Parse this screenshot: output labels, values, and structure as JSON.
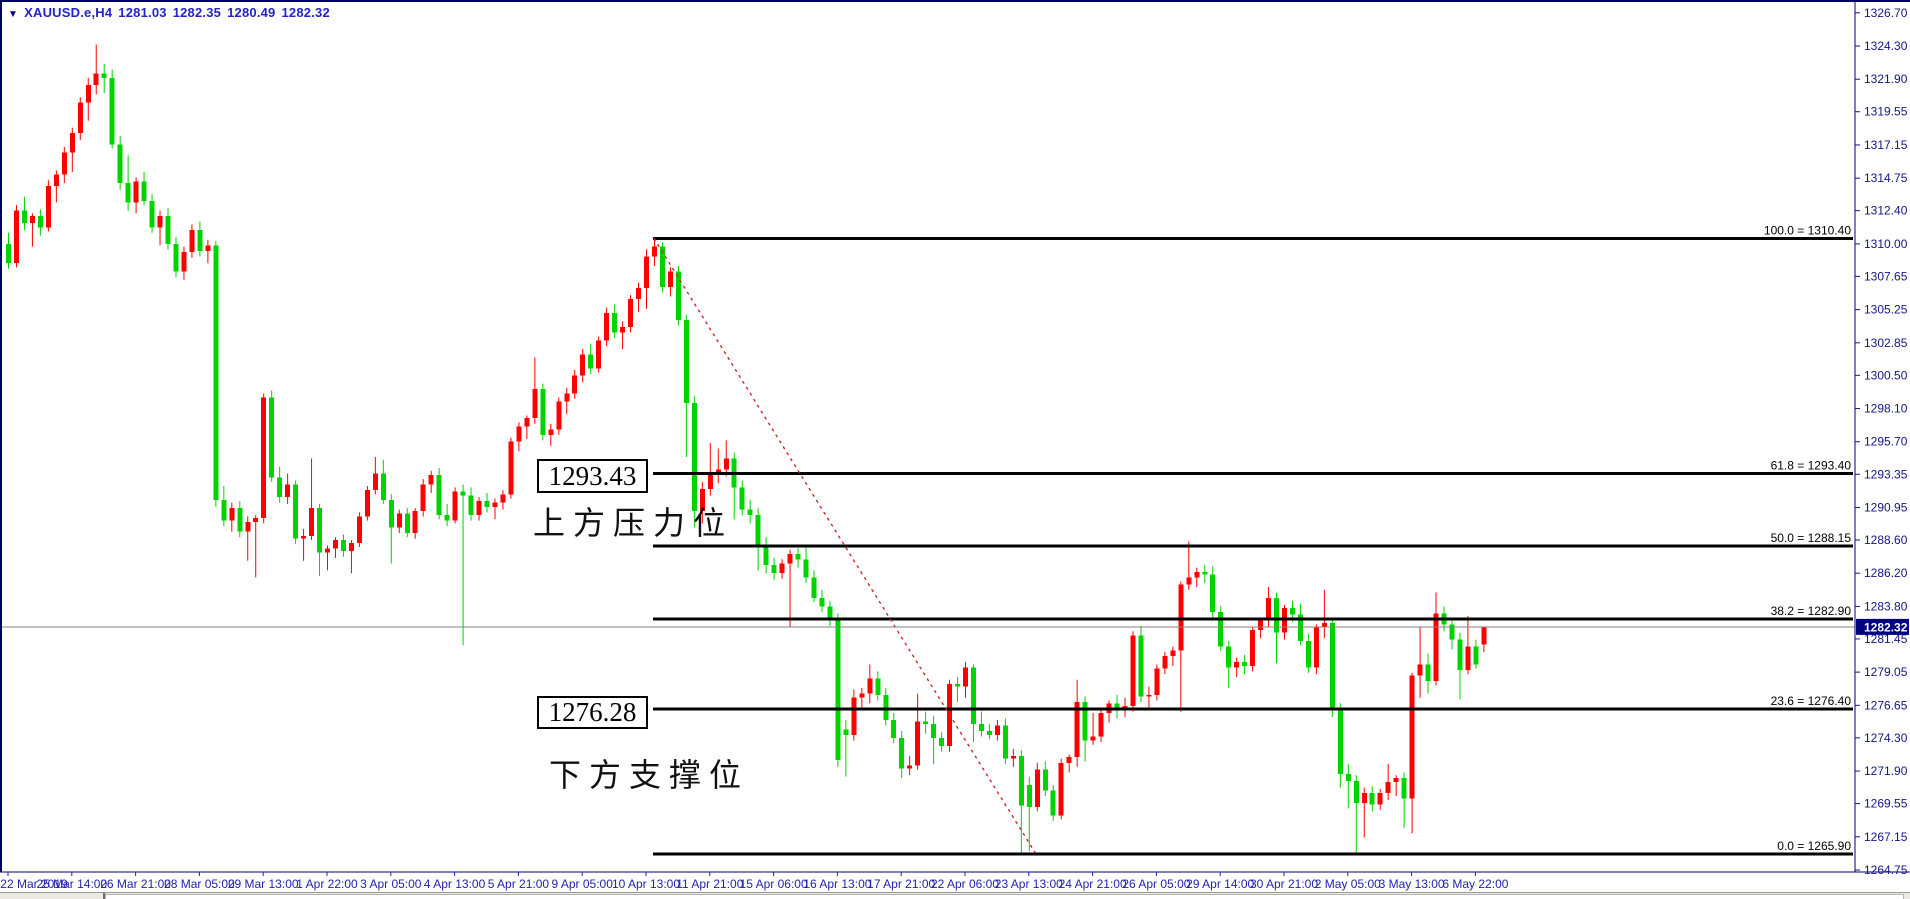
{
  "window": {
    "ohlc_bar": {
      "collapse_icon": "▼",
      "symbol_period": "XAUUSD.e,H4",
      "open": "1281.03",
      "high": "1282.35",
      "low": "1280.49",
      "close": "1282.32"
    }
  },
  "chart_data": {
    "type": "candlestick",
    "symbol": "XAUUSD.e",
    "timeframe": "H4",
    "legend_position": "top-left",
    "grid": false,
    "colors": {
      "bull": "#ff0000",
      "bear": "#00d300",
      "fib_line": "#000000",
      "fib_text": "#000000",
      "trendline": "#cc2a2a",
      "current_price_line": "#808080",
      "current_price_bg": "#000080",
      "current_price_text": "#ffffff",
      "price_text": "#151585",
      "date_text": "#2323aa",
      "border": "#000066"
    },
    "price_axis": {
      "current_price": "1282.32",
      "ticks": [
        "1326.70",
        "1324.30",
        "1321.90",
        "1319.55",
        "1317.15",
        "1314.75",
        "1312.40",
        "1310.00",
        "1307.65",
        "1305.25",
        "1302.85",
        "1300.50",
        "1298.10",
        "1295.70",
        "1293.35",
        "1290.95",
        "1288.60",
        "1286.20",
        "1283.80",
        "1281.45",
        "1279.05",
        "1276.65",
        "1274.30",
        "1271.90",
        "1269.55",
        "1267.15",
        "1264.75"
      ],
      "tick_values": [
        1326.7,
        1324.3,
        1321.9,
        1319.55,
        1317.15,
        1314.75,
        1312.4,
        1310.0,
        1307.65,
        1305.25,
        1302.85,
        1300.5,
        1298.1,
        1295.7,
        1293.35,
        1290.95,
        1288.6,
        1286.2,
        1283.8,
        1281.45,
        1279.05,
        1276.65,
        1274.3,
        1271.9,
        1269.55,
        1267.15,
        1264.75
      ]
    },
    "date_axis": {
      "labels": [
        "22 Mar 2019",
        "25 Mar 14:00",
        "26 Mar 21:00",
        "28 Mar 05:00",
        "29 Mar 13:00",
        "1 Apr 22:00",
        "3 Apr 05:00",
        "4 Apr 13:00",
        "5 Apr 21:00",
        "9 Apr 05:00",
        "10 Apr 13:00",
        "11 Apr 21:00",
        "15 Apr 06:00",
        "16 Apr 13:00",
        "17 Apr 21:00",
        "22 Apr 06:00",
        "23 Apr 13:00",
        "24 Apr 21:00",
        "26 Apr 05:00",
        "29 Apr 14:00",
        "30 Apr 21:00",
        "2 May 05:00",
        "3 May 13:00",
        "6 May 22:00"
      ]
    },
    "fibonacci": {
      "levels": [
        {
          "label": "100.0 = 1310.40",
          "ratio": 100.0,
          "price": 1310.4
        },
        {
          "label": "61.8 = 1293.40",
          "ratio": 61.8,
          "price": 1293.4
        },
        {
          "label": "50.0 = 1288.15",
          "ratio": 50.0,
          "price": 1288.15
        },
        {
          "label": "38.2 = 1282.90",
          "ratio": 38.2,
          "price": 1282.9
        },
        {
          "label": "23.6 = 1276.40",
          "ratio": 23.6,
          "price": 1276.4
        },
        {
          "label": "0.0 = 1265.90",
          "ratio": 0.0,
          "price": 1265.9
        }
      ]
    },
    "trendline": {
      "from_bar": 81,
      "from_price": 1310.4,
      "to_bar": 128.8,
      "to_price": 1266.0,
      "style": "dashed"
    },
    "annotations": [
      {
        "name": "resistance-price",
        "text": "1293.43",
        "boxed": true
      },
      {
        "name": "resistance-label",
        "text": "上方压力位",
        "boxed": false
      },
      {
        "name": "support-price",
        "text": "1276.28",
        "boxed": true
      },
      {
        "name": "support-label",
        "text": "下方支撑位",
        "boxed": false
      }
    ],
    "ylim": [
      1264.75,
      1326.7
    ],
    "candles": [
      [
        1310.0,
        1310.8,
        1308.2,
        1308.6
      ],
      [
        1308.6,
        1312.8,
        1308.3,
        1312.4
      ],
      [
        1312.4,
        1313.4,
        1311.0,
        1311.5
      ],
      [
        1311.5,
        1312.2,
        1309.8,
        1312.0
      ],
      [
        1312.0,
        1312.5,
        1310.6,
        1311.2
      ],
      [
        1311.2,
        1314.6,
        1310.9,
        1314.2
      ],
      [
        1314.2,
        1315.3,
        1313.0,
        1315.0
      ],
      [
        1315.0,
        1317.0,
        1314.4,
        1316.6
      ],
      [
        1316.6,
        1318.4,
        1315.2,
        1318.0
      ],
      [
        1318.0,
        1320.6,
        1317.5,
        1320.2
      ],
      [
        1320.2,
        1322.0,
        1318.9,
        1321.5
      ],
      [
        1321.5,
        1324.4,
        1320.8,
        1322.3
      ],
      [
        1322.3,
        1323.0,
        1320.9,
        1322.0
      ],
      [
        1322.0,
        1322.6,
        1316.9,
        1317.2
      ],
      [
        1317.2,
        1317.8,
        1313.9,
        1314.4
      ],
      [
        1314.4,
        1316.4,
        1312.4,
        1313.0
      ],
      [
        1313.0,
        1314.8,
        1312.2,
        1314.5
      ],
      [
        1314.5,
        1315.2,
        1312.8,
        1313.1
      ],
      [
        1313.1,
        1313.6,
        1310.8,
        1311.2
      ],
      [
        1311.2,
        1312.4,
        1309.9,
        1312.0
      ],
      [
        1312.0,
        1312.6,
        1309.6,
        1310.0
      ],
      [
        1310.0,
        1310.5,
        1307.6,
        1308.0
      ],
      [
        1308.0,
        1309.8,
        1307.4,
        1309.4
      ],
      [
        1309.4,
        1311.4,
        1309.0,
        1311.0
      ],
      [
        1311.0,
        1311.6,
        1309.1,
        1309.5
      ],
      [
        1309.5,
        1310.3,
        1308.6,
        1309.9
      ],
      [
        1309.9,
        1310.2,
        1291.0,
        1291.5
      ],
      [
        1291.5,
        1292.5,
        1289.6,
        1290.0
      ],
      [
        1290.0,
        1291.3,
        1289.2,
        1290.9
      ],
      [
        1290.9,
        1291.4,
        1288.8,
        1289.2
      ],
      [
        1289.2,
        1290.3,
        1287.1,
        1289.9
      ],
      [
        1289.9,
        1290.4,
        1285.9,
        1290.2
      ],
      [
        1290.2,
        1299.2,
        1289.8,
        1298.9
      ],
      [
        1298.9,
        1299.4,
        1292.8,
        1293.1
      ],
      [
        1293.1,
        1293.9,
        1291.3,
        1291.7
      ],
      [
        1291.7,
        1293.4,
        1291.2,
        1292.6
      ],
      [
        1292.6,
        1292.9,
        1288.3,
        1288.7
      ],
      [
        1288.7,
        1289.4,
        1287.1,
        1288.9
      ],
      [
        1288.9,
        1294.5,
        1288.6,
        1290.9
      ],
      [
        1290.9,
        1291.2,
        1286.0,
        1287.7
      ],
      [
        1287.7,
        1288.2,
        1286.4,
        1288.0
      ],
      [
        1288.0,
        1288.8,
        1287.3,
        1288.6
      ],
      [
        1288.6,
        1289.0,
        1287.4,
        1287.8
      ],
      [
        1287.8,
        1288.6,
        1286.2,
        1288.4
      ],
      [
        1288.4,
        1290.6,
        1288.1,
        1290.3
      ],
      [
        1290.3,
        1292.5,
        1290.0,
        1292.2
      ],
      [
        1292.2,
        1294.6,
        1291.9,
        1293.4
      ],
      [
        1293.4,
        1294.4,
        1291.2,
        1291.5
      ],
      [
        1291.5,
        1291.9,
        1286.9,
        1289.5
      ],
      [
        1289.5,
        1290.8,
        1289.1,
        1290.5
      ],
      [
        1290.5,
        1290.9,
        1288.8,
        1289.1
      ],
      [
        1289.1,
        1290.9,
        1288.7,
        1290.7
      ],
      [
        1290.7,
        1293.0,
        1290.3,
        1292.6
      ],
      [
        1292.6,
        1293.6,
        1292.0,
        1293.3
      ],
      [
        1293.3,
        1293.8,
        1290.1,
        1290.4
      ],
      [
        1290.4,
        1291.2,
        1289.6,
        1290.0
      ],
      [
        1290.0,
        1292.4,
        1289.8,
        1292.1
      ],
      [
        1292.1,
        1292.6,
        1281.0,
        1291.8
      ],
      [
        1291.8,
        1292.4,
        1290.0,
        1290.4
      ],
      [
        1290.4,
        1291.7,
        1290.0,
        1291.4
      ],
      [
        1291.4,
        1292.0,
        1290.6,
        1291.0
      ],
      [
        1291.0,
        1291.6,
        1290.1,
        1291.3
      ],
      [
        1291.3,
        1292.2,
        1290.8,
        1291.9
      ],
      [
        1291.9,
        1296.0,
        1291.6,
        1295.7
      ],
      [
        1295.7,
        1297.1,
        1295.0,
        1296.8
      ],
      [
        1296.8,
        1297.6,
        1295.9,
        1297.4
      ],
      [
        1297.4,
        1301.8,
        1297.0,
        1299.5
      ],
      [
        1299.5,
        1299.9,
        1295.8,
        1296.2
      ],
      [
        1296.2,
        1297.0,
        1295.4,
        1296.6
      ],
      [
        1296.6,
        1298.9,
        1296.2,
        1298.6
      ],
      [
        1298.6,
        1299.6,
        1297.7,
        1299.2
      ],
      [
        1299.2,
        1300.9,
        1298.8,
        1300.5
      ],
      [
        1300.5,
        1302.4,
        1300.0,
        1302.0
      ],
      [
        1302.0,
        1302.8,
        1300.6,
        1301.0
      ],
      [
        1301.0,
        1303.3,
        1300.7,
        1303.0
      ],
      [
        1303.0,
        1305.4,
        1302.6,
        1305.0
      ],
      [
        1305.0,
        1305.6,
        1303.2,
        1303.6
      ],
      [
        1303.6,
        1304.4,
        1302.4,
        1304.0
      ],
      [
        1304.0,
        1306.3,
        1303.6,
        1306.0
      ],
      [
        1306.0,
        1307.2,
        1305.1,
        1306.8
      ],
      [
        1306.8,
        1309.6,
        1305.3,
        1309.1
      ],
      [
        1309.1,
        1310.4,
        1308.4,
        1309.8
      ],
      [
        1309.8,
        1310.1,
        1306.5,
        1306.9
      ],
      [
        1306.9,
        1308.3,
        1306.2,
        1308.0
      ],
      [
        1308.0,
        1308.4,
        1304.1,
        1304.5
      ],
      [
        1304.5,
        1304.9,
        1294.6,
        1298.5
      ],
      [
        1298.5,
        1299.0,
        1289.5,
        1290.7
      ],
      [
        1290.7,
        1292.8,
        1289.8,
        1292.3
      ],
      [
        1292.3,
        1295.6,
        1291.8,
        1293.3
      ],
      [
        1293.3,
        1295.2,
        1292.7,
        1293.7
      ],
      [
        1293.7,
        1295.8,
        1293.2,
        1294.5
      ],
      [
        1294.5,
        1294.9,
        1290.1,
        1292.4
      ],
      [
        1292.4,
        1292.9,
        1290.4,
        1290.8
      ],
      [
        1290.8,
        1291.5,
        1289.8,
        1290.4
      ],
      [
        1290.4,
        1290.9,
        1286.4,
        1288.1
      ],
      [
        1288.1,
        1288.8,
        1286.2,
        1286.8
      ],
      [
        1286.8,
        1287.3,
        1285.7,
        1286.2
      ],
      [
        1286.2,
        1287.2,
        1285.8,
        1286.9
      ],
      [
        1286.9,
        1287.9,
        1282.3,
        1287.6
      ],
      [
        1287.6,
        1288.0,
        1286.6,
        1287.2
      ],
      [
        1287.2,
        1288.2,
        1285.5,
        1285.9
      ],
      [
        1285.9,
        1286.4,
        1284.1,
        1284.4
      ],
      [
        1284.4,
        1285.0,
        1283.4,
        1283.8
      ],
      [
        1283.8,
        1284.2,
        1282.4,
        1282.9
      ],
      [
        1282.9,
        1283.3,
        1272.2,
        1272.7
      ],
      [
        1274.9,
        1275.6,
        1271.5,
        1274.5
      ],
      [
        1274.5,
        1277.8,
        1274.1,
        1277.2
      ],
      [
        1277.2,
        1277.9,
        1276.3,
        1277.5
      ],
      [
        1277.5,
        1279.6,
        1276.8,
        1278.6
      ],
      [
        1278.6,
        1279.1,
        1277.0,
        1277.4
      ],
      [
        1277.4,
        1277.9,
        1275.2,
        1275.6
      ],
      [
        1275.6,
        1276.1,
        1273.9,
        1274.3
      ],
      [
        1274.3,
        1274.8,
        1271.4,
        1272.1
      ],
      [
        1272.1,
        1273.0,
        1271.6,
        1272.3
      ],
      [
        1272.3,
        1277.5,
        1272.0,
        1275.5
      ],
      [
        1275.5,
        1276.2,
        1274.6,
        1275.3
      ],
      [
        1275.3,
        1275.9,
        1272.4,
        1274.3
      ],
      [
        1274.3,
        1274.7,
        1273.3,
        1273.7
      ],
      [
        1273.7,
        1278.5,
        1273.3,
        1278.2
      ],
      [
        1278.2,
        1278.7,
        1276.9,
        1278.0
      ],
      [
        1278.0,
        1279.8,
        1277.2,
        1279.4
      ],
      [
        1279.4,
        1279.6,
        1274.0,
        1275.3
      ],
      [
        1275.3,
        1276.2,
        1274.4,
        1274.8
      ],
      [
        1274.8,
        1275.3,
        1274.2,
        1274.5
      ],
      [
        1274.5,
        1275.6,
        1274.1,
        1275.2
      ],
      [
        1275.2,
        1275.7,
        1272.4,
        1272.8
      ],
      [
        1272.8,
        1273.5,
        1272.2,
        1273.0
      ],
      [
        1273.0,
        1273.4,
        1265.9,
        1269.4
      ],
      [
        1270.9,
        1271.5,
        1266.1,
        1269.3
      ],
      [
        1269.3,
        1272.5,
        1269.0,
        1272.0
      ],
      [
        1272.0,
        1272.6,
        1270.1,
        1270.5
      ],
      [
        1270.5,
        1270.9,
        1268.3,
        1268.7
      ],
      [
        1268.7,
        1272.8,
        1268.4,
        1272.5
      ],
      [
        1272.5,
        1273.1,
        1271.8,
        1272.9
      ],
      [
        1272.9,
        1278.5,
        1272.2,
        1276.9
      ],
      [
        1276.9,
        1277.3,
        1272.6,
        1274.1
      ],
      [
        1274.1,
        1276.1,
        1273.8,
        1274.4
      ],
      [
        1274.4,
        1276.5,
        1274.0,
        1276.1
      ],
      [
        1276.1,
        1277.0,
        1275.4,
        1276.8
      ],
      [
        1276.8,
        1277.4,
        1275.7,
        1276.3
      ],
      [
        1276.3,
        1277.2,
        1275.8,
        1276.6
      ],
      [
        1276.6,
        1282.0,
        1276.2,
        1281.7
      ],
      [
        1281.7,
        1282.4,
        1276.9,
        1277.3
      ],
      [
        1277.3,
        1278.0,
        1276.5,
        1277.4
      ],
      [
        1277.4,
        1279.6,
        1277.0,
        1279.3
      ],
      [
        1279.3,
        1280.5,
        1278.9,
        1280.2
      ],
      [
        1280.2,
        1280.9,
        1279.5,
        1280.6
      ],
      [
        1280.6,
        1285.6,
        1276.2,
        1285.4
      ],
      [
        1285.4,
        1288.5,
        1285.0,
        1285.9
      ],
      [
        1285.9,
        1286.6,
        1285.2,
        1286.3
      ],
      [
        1286.3,
        1286.8,
        1285.5,
        1286.1
      ],
      [
        1286.1,
        1286.7,
        1283.0,
        1283.4
      ],
      [
        1283.4,
        1283.8,
        1280.6,
        1280.9
      ],
      [
        1280.9,
        1281.3,
        1277.9,
        1279.4
      ],
      [
        1279.4,
        1280.1,
        1278.7,
        1279.8
      ],
      [
        1279.8,
        1280.3,
        1278.9,
        1279.5
      ],
      [
        1279.5,
        1282.3,
        1279.1,
        1282.1
      ],
      [
        1282.1,
        1283.0,
        1281.5,
        1282.9
      ],
      [
        1282.9,
        1285.2,
        1282.3,
        1284.4
      ],
      [
        1284.4,
        1284.8,
        1279.7,
        1281.9
      ],
      [
        1281.9,
        1283.9,
        1281.4,
        1283.7
      ],
      [
        1283.7,
        1284.2,
        1282.7,
        1283.2
      ],
      [
        1283.2,
        1284.0,
        1281.0,
        1281.3
      ],
      [
        1281.3,
        1281.8,
        1279.0,
        1279.4
      ],
      [
        1279.4,
        1282.5,
        1278.9,
        1282.3
      ],
      [
        1282.3,
        1285.0,
        1281.5,
        1282.6
      ],
      [
        1282.6,
        1283.0,
        1275.8,
        1276.4
      ],
      [
        1276.4,
        1276.8,
        1270.7,
        1271.7
      ],
      [
        1271.7,
        1272.4,
        1269.2,
        1271.2
      ],
      [
        1271.2,
        1271.6,
        1266.0,
        1269.6
      ],
      [
        1269.6,
        1270.7,
        1267.1,
        1270.3
      ],
      [
        1270.3,
        1270.8,
        1269.0,
        1269.5
      ],
      [
        1269.5,
        1270.6,
        1269.1,
        1270.3
      ],
      [
        1270.3,
        1272.4,
        1269.8,
        1271.1
      ],
      [
        1271.1,
        1271.6,
        1270.1,
        1271.4
      ],
      [
        1271.4,
        1271.8,
        1267.8,
        1269.9
      ],
      [
        1269.9,
        1279.0,
        1267.4,
        1278.8
      ],
      [
        1278.8,
        1282.3,
        1277.2,
        1279.6
      ],
      [
        1279.6,
        1280.4,
        1277.5,
        1278.4
      ],
      [
        1278.4,
        1284.8,
        1278.1,
        1283.3
      ],
      [
        1283.3,
        1283.8,
        1282.0,
        1282.5
      ],
      [
        1282.5,
        1283.0,
        1280.7,
        1281.4
      ],
      [
        1281.4,
        1281.9,
        1277.1,
        1279.2
      ],
      [
        1279.2,
        1283.1,
        1278.9,
        1280.9
      ],
      [
        1280.9,
        1281.4,
        1279.3,
        1279.6
      ],
      [
        1281.03,
        1282.35,
        1280.49,
        1282.32
      ]
    ]
  }
}
